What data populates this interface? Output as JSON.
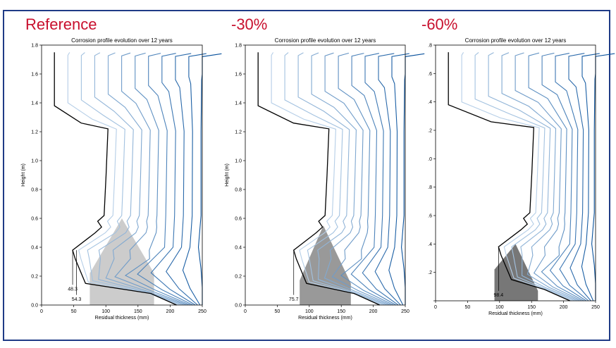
{
  "headings": [
    "Reference",
    "-30%",
    "-60%"
  ],
  "colors": {
    "heading": "#c8102e",
    "frame": "#1f3b86",
    "profile_light": "#c6dbef",
    "profile_dark": "#08519c",
    "profile_current": "#000000",
    "fill_reference": "#cccccc",
    "fill_30": "#999999",
    "fill_60": "#777777"
  },
  "chart_data": [
    {
      "type": "line",
      "title": "Corrosion profile evolution over 12 years",
      "xlabel": "Residual thickness (mm)",
      "ylabel": "Height (m)",
      "xlim": [
        0,
        250
      ],
      "ylim": [
        0,
        1.8
      ],
      "xticks": [
        "0",
        "50",
        "100",
        "150",
        "200",
        "250"
      ],
      "yticks": [
        "0.0",
        "0.2",
        "0.4",
        "0.6",
        "0.8",
        "1.0",
        "1.2",
        "1.4",
        "1.6",
        "1.8"
      ],
      "annotations": [
        {
          "text": "48.3",
          "x": 48.3,
          "y": 0.1
        },
        {
          "text": "54.3",
          "x": 54.3,
          "y": 0.03
        }
      ],
      "min_thickness": 48.3,
      "remaining_fill": [
        [
          75,
          0
        ],
        [
          75,
          0.22
        ],
        [
          125,
          0.6
        ],
        [
          175,
          0.22
        ],
        [
          175,
          0
        ]
      ],
      "fill_color": "#cccccc"
    },
    {
      "type": "line",
      "title": "Corrosion profile evolution over 12 years",
      "xlabel": "Residual thickness (mm)",
      "ylabel": "Height (m)",
      "xlim": [
        0,
        250
      ],
      "ylim": [
        0,
        1.8
      ],
      "xticks": [
        "0",
        "50",
        "100",
        "150",
        "200",
        "250"
      ],
      "yticks": [
        "0.0",
        "0.2",
        "0.4",
        "0.6",
        "0.8",
        "1.0",
        "1.2",
        "1.4",
        "1.6",
        "1.8"
      ],
      "annotations": [
        {
          "text": "75.7",
          "x": 75.7,
          "y": 0.03
        }
      ],
      "min_thickness": 75.7,
      "remaining_fill": [
        [
          85,
          0
        ],
        [
          85,
          0.17
        ],
        [
          122,
          0.55
        ],
        [
          165,
          0.15
        ],
        [
          165,
          0
        ]
      ],
      "fill_color": "#999999"
    },
    {
      "type": "line",
      "title": "Corrosion profile evolution over 12 years",
      "xlabel": "Residual thickness (mm)",
      "ylabel": "",
      "xlim": [
        0,
        250
      ],
      "ylim": [
        0,
        1.8
      ],
      "xticks": [
        "0",
        "50",
        "100",
        "150",
        "200",
        "250"
      ],
      "yticks": [
        "",
        ".2",
        ".4",
        ".6",
        ".8",
        ".0",
        ".2",
        ".4",
        ".6",
        ".8"
      ],
      "annotations": [
        {
          "text": "98.4",
          "x": 98.4,
          "y": 0.03
        }
      ],
      "min_thickness": 98.4,
      "remaining_fill": [
        [
          92,
          0
        ],
        [
          92,
          0.22
        ],
        [
          125,
          0.4
        ],
        [
          160,
          0.07
        ],
        [
          160,
          0
        ]
      ],
      "fill_color": "#777777"
    }
  ]
}
